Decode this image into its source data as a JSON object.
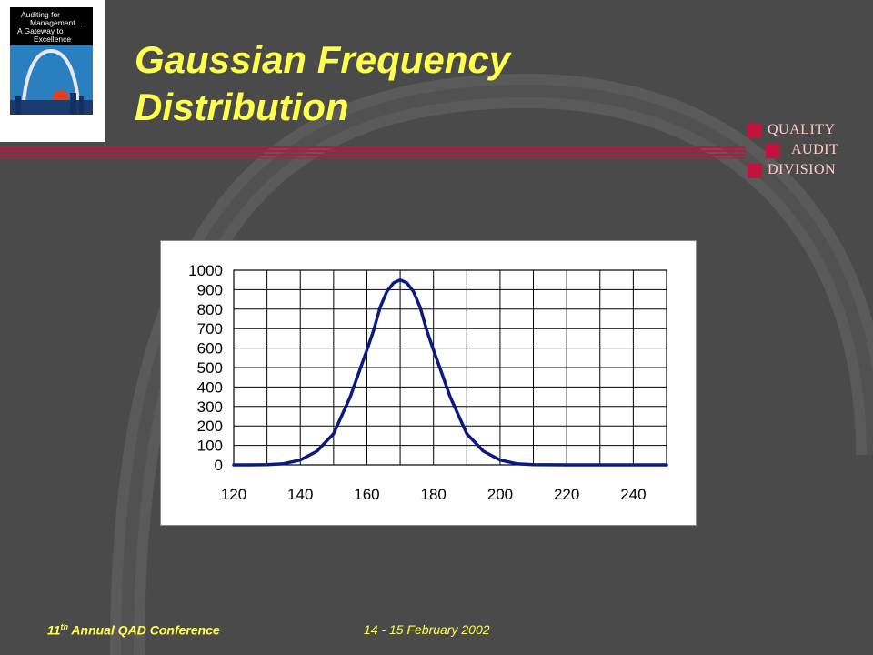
{
  "slide": {
    "title": "Gaussian Frequency Distribution",
    "title_line1": "Gaussian Frequency",
    "title_line2": "Distribution",
    "background_color": "#4a4a4a",
    "title_color": "#ffff4d",
    "accent_color": "#c0143c"
  },
  "logo": {
    "line1": "Auditing for",
    "line2": "Management…",
    "line3": "A Gateway to",
    "line4": "Excellence",
    "icon": "gateway-arch-icon"
  },
  "division_label": {
    "line1": "QUALITY",
    "line2": "AUDIT",
    "line3": "DIVISION"
  },
  "footer": {
    "conference_prefix": "11",
    "conference_sup": "th",
    "conference_suffix": " Annual QAD Conference",
    "date": "14 - 15 February 2002"
  },
  "chart_data": {
    "type": "line",
    "title": "",
    "xlabel": "",
    "ylabel": "",
    "xlim": [
      120,
      250
    ],
    "ylim": [
      0,
      1000
    ],
    "x_ticks": [
      120,
      140,
      160,
      180,
      200,
      220,
      240
    ],
    "y_ticks": [
      0,
      100,
      200,
      300,
      400,
      500,
      600,
      700,
      800,
      900,
      1000
    ],
    "grid": true,
    "legend": "none",
    "line_color": "#0a1a80",
    "series": [
      {
        "x": [
          120,
          125,
          130,
          135,
          140,
          145,
          150,
          155,
          160,
          162,
          164,
          166,
          168,
          170,
          172,
          174,
          176,
          178,
          180,
          185,
          190,
          195,
          200,
          205,
          210,
          220,
          230,
          240,
          250
        ],
        "values": [
          0,
          0,
          1,
          6,
          25,
          70,
          160,
          350,
          590,
          690,
          810,
          890,
          935,
          950,
          935,
          890,
          810,
          690,
          590,
          350,
          160,
          70,
          25,
          6,
          1,
          0,
          0,
          0,
          0
        ]
      }
    ]
  }
}
